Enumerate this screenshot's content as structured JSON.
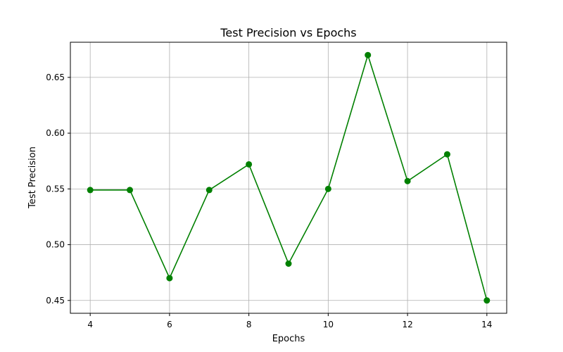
{
  "chart_data": {
    "type": "line",
    "title": "Test Precision vs Epochs",
    "xlabel": "Epochs",
    "ylabel": "Test Precision",
    "x": [
      4,
      5,
      6,
      7,
      8,
      9,
      10,
      11,
      12,
      13,
      14
    ],
    "series": [
      {
        "values": [
          0.549,
          0.549,
          0.47,
          0.549,
          0.572,
          0.483,
          0.55,
          0.67,
          0.557,
          0.581,
          0.45
        ],
        "color": "#008000",
        "marker": "circle"
      }
    ],
    "xticks": [
      "4",
      "6",
      "8",
      "10",
      "12",
      "14"
    ],
    "yticks": [
      "0.45",
      "0.50",
      "0.55",
      "0.60",
      "0.65"
    ],
    "xlim": [
      3.5,
      14.5
    ],
    "ylim": [
      0.4385,
      0.6815
    ],
    "grid": true
  }
}
